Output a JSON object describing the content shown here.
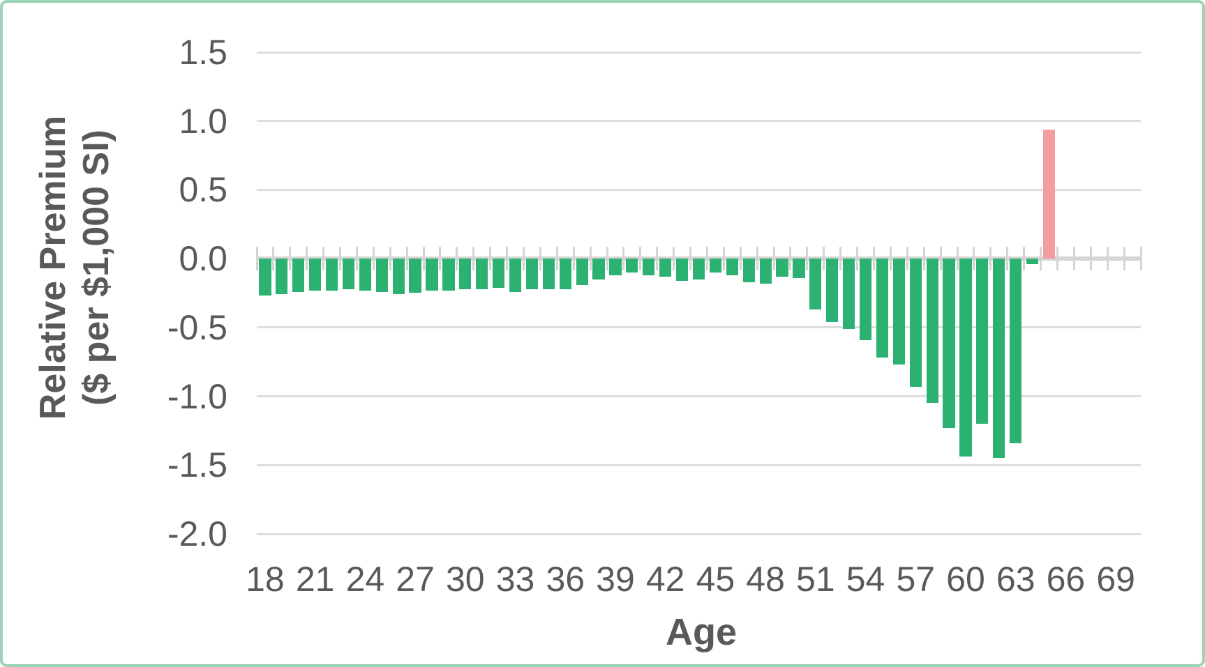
{
  "frame": {
    "border_color": "#9ad3b5",
    "background_color": "#ffffff"
  },
  "chart_data": {
    "type": "bar",
    "title": "",
    "xlabel": "Age",
    "ylabel_line1": "Relative Premium",
    "ylabel_line2": "($ per $1,000 SI)",
    "x_min": 18,
    "x_max": 70,
    "x_tick_step": 3,
    "x_tick_labels": [
      "18",
      "21",
      "24",
      "27",
      "30",
      "33",
      "36",
      "39",
      "42",
      "45",
      "48",
      "51",
      "54",
      "57",
      "60",
      "63",
      "66",
      "69"
    ],
    "y_tick_labels": [
      "1.5",
      "1.0",
      "0.5",
      "0.0",
      "-0.5",
      "-1.0",
      "-1.5",
      "-2.0"
    ],
    "y_tick_values": [
      1.5,
      1.0,
      0.5,
      0.0,
      -0.5,
      -1.0,
      -1.5,
      -2.0
    ],
    "ylim": [
      -2.0,
      1.5
    ],
    "grid": true,
    "legend_position": "none",
    "ages": [
      18,
      19,
      20,
      21,
      22,
      23,
      24,
      25,
      26,
      27,
      28,
      29,
      30,
      31,
      32,
      33,
      34,
      35,
      36,
      37,
      38,
      39,
      40,
      41,
      42,
      43,
      44,
      45,
      46,
      47,
      48,
      49,
      50,
      51,
      52,
      53,
      54,
      55,
      56,
      57,
      58,
      59,
      60,
      61,
      62,
      63,
      64,
      65
    ],
    "values": [
      -0.27,
      -0.26,
      -0.24,
      -0.23,
      -0.23,
      -0.22,
      -0.23,
      -0.24,
      -0.26,
      -0.25,
      -0.23,
      -0.23,
      -0.22,
      -0.22,
      -0.21,
      -0.24,
      -0.22,
      -0.22,
      -0.22,
      -0.19,
      -0.15,
      -0.12,
      -0.1,
      -0.12,
      -0.13,
      -0.16,
      -0.15,
      -0.1,
      -0.12,
      -0.17,
      -0.18,
      -0.13,
      -0.14,
      -0.37,
      -0.46,
      -0.51,
      -0.59,
      -0.72,
      -0.77,
      -0.93,
      -1.05,
      -1.23,
      -1.44,
      -1.2,
      -1.45,
      -1.34,
      -0.04,
      0.94
    ],
    "highlight_age": 65,
    "colors": {
      "bar_green": "#2bb273",
      "bar_pink": "#f29da1",
      "gridline": "#dedede",
      "axis_line": "#d4d4d4",
      "text": "#595959"
    }
  }
}
